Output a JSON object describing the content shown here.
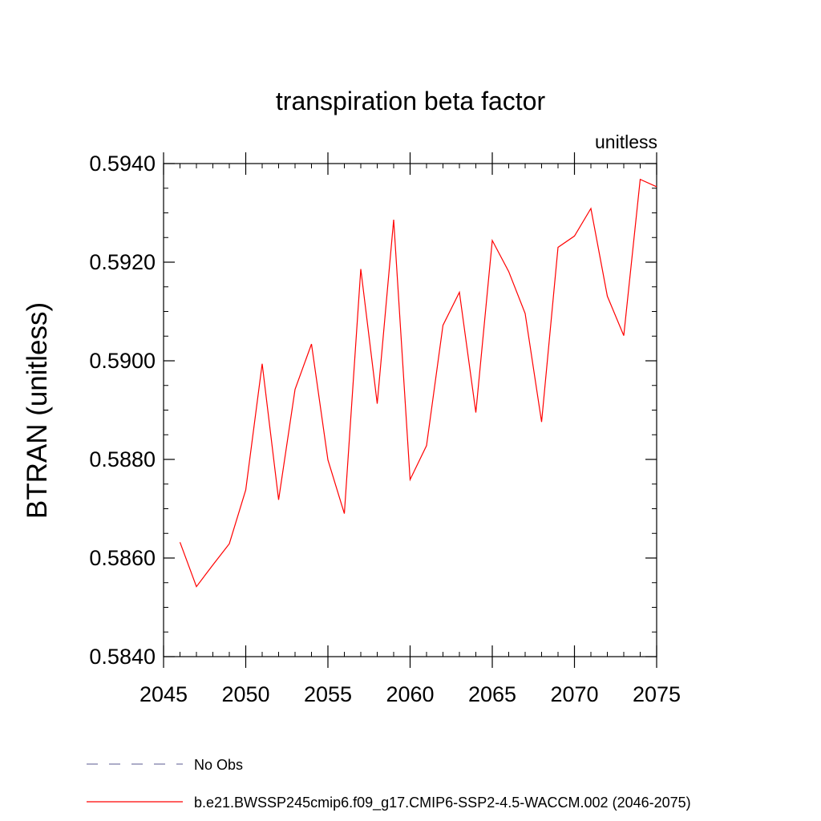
{
  "chart_data": {
    "type": "line",
    "title": "transpiration beta factor",
    "units_label": "unitless",
    "xlabel": "",
    "ylabel": "BTRAN  (unitless)",
    "xlim": [
      2045,
      2075
    ],
    "ylim": [
      0.584,
      0.594
    ],
    "x_ticks": [
      2045,
      2050,
      2055,
      2060,
      2065,
      2070,
      2075
    ],
    "x_tick_labels": [
      "2045",
      "2050",
      "2055",
      "2060",
      "2065",
      "2070",
      "2075"
    ],
    "y_ticks": [
      0.584,
      0.586,
      0.588,
      0.59,
      0.592,
      0.594
    ],
    "y_tick_labels": [
      "0.5840",
      "0.5860",
      "0.5880",
      "0.5900",
      "0.5920",
      "0.5940"
    ],
    "grid": false,
    "legend_position": "bottom",
    "series": [
      {
        "name": "b.e21.BWSSP245cmip6.f09_g17.CMIP6-SSP2-4.5-WACCM.002 (2046-2075)",
        "color": "#ff0000",
        "x": [
          2046,
          2047,
          2048,
          2049,
          2050,
          2051,
          2052,
          2053,
          2054,
          2055,
          2056,
          2057,
          2058,
          2059,
          2060,
          2061,
          2062,
          2063,
          2064,
          2065,
          2066,
          2067,
          2068,
          2069,
          2070,
          2071,
          2072,
          2073,
          2074,
          2075
        ],
        "values": [
          0.58632,
          0.58542,
          0.58586,
          0.58629,
          0.58738,
          0.58994,
          0.58718,
          0.58942,
          0.59034,
          0.58799,
          0.5869,
          0.59186,
          0.58913,
          0.59286,
          0.58759,
          0.58828,
          0.59072,
          0.59139,
          0.58895,
          0.59244,
          0.59181,
          0.59096,
          0.58876,
          0.5923,
          0.59253,
          0.59309,
          0.59131,
          0.59051,
          0.59368,
          0.59353
        ]
      }
    ],
    "legend": [
      {
        "label": "No Obs",
        "color": "#7a7aa8",
        "style": "dashed"
      },
      {
        "label": "b.e21.BWSSP245cmip6.f09_g17.CMIP6-SSP2-4.5-WACCM.002 (2046-2075)",
        "color": "#ff0000",
        "style": "solid"
      }
    ]
  }
}
